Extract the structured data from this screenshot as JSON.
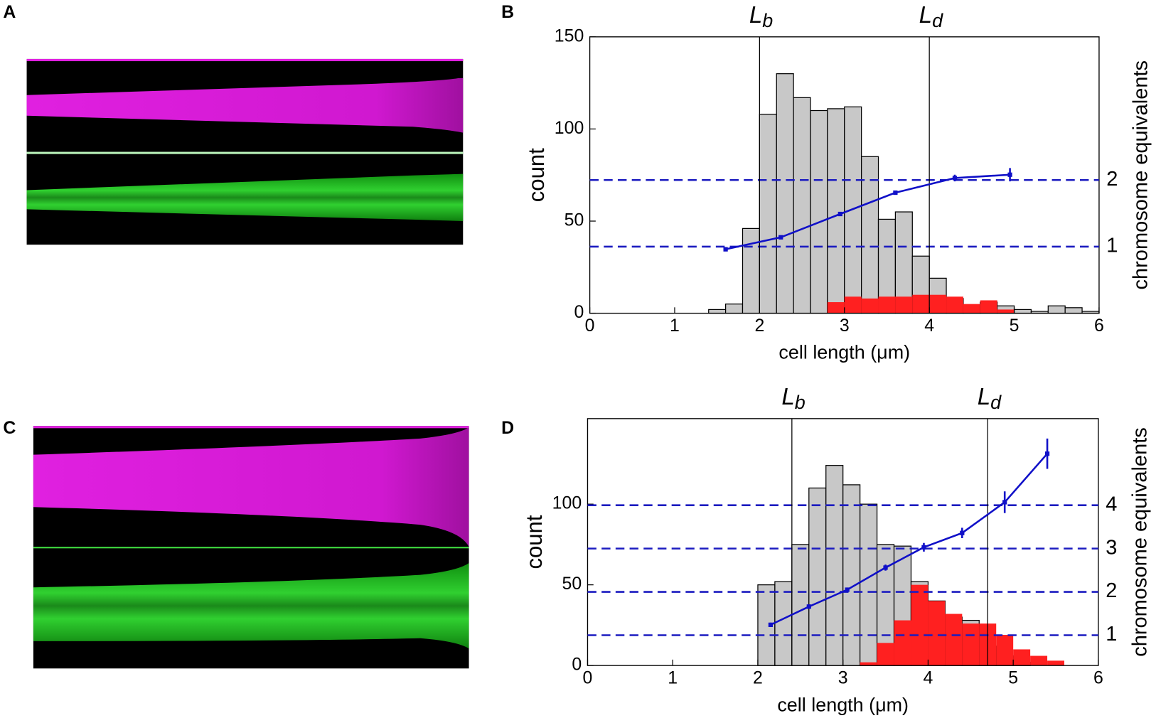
{
  "panel_labels": [
    "A",
    "B",
    "C",
    "D"
  ],
  "chart_data": [
    {
      "type": "histogram",
      "xlabel": "cell length (μm)",
      "ylabel": "count",
      "y2label": "chromosome equivalents",
      "xlim": [
        0,
        6
      ],
      "xticks": [
        0,
        1,
        2,
        3,
        4,
        5,
        6
      ],
      "ylim": [
        0,
        150
      ],
      "yticks": [
        0,
        50,
        100,
        150
      ],
      "y2lim": [
        0,
        4.15
      ],
      "y2ticks": [
        1,
        2
      ],
      "y2grid": "dashed",
      "y2grid_color": "#1c1cc0",
      "histograms": [
        {
          "color": "#c8c8c8",
          "edge_color": "#000000",
          "bins": [
            1.4,
            1.6,
            1.8,
            2.0,
            2.2,
            2.4,
            2.6,
            2.8,
            3.0,
            3.2,
            3.4,
            3.6,
            3.8,
            4.0,
            4.2,
            4.4,
            4.6,
            4.8,
            5.0,
            5.2,
            5.4,
            5.6,
            5.8,
            6.0
          ],
          "values": [
            2,
            5,
            46,
            108,
            130,
            117,
            110,
            111,
            112,
            85,
            51,
            55,
            31,
            19,
            8,
            1,
            6,
            4,
            2,
            1,
            4,
            3,
            1
          ]
        },
        {
          "color": "#ff2020",
          "bins": [
            2.8,
            3.0,
            3.2,
            3.4,
            3.6,
            3.8,
            4.0,
            4.2,
            4.4,
            4.6,
            4.8,
            5.0
          ],
          "values": [
            6,
            9,
            8,
            9,
            9,
            10,
            10,
            9,
            5,
            7,
            2
          ]
        }
      ],
      "series": [
        {
          "color": "#1010c8",
          "axis": "y2",
          "x": [
            1.6,
            2.25,
            2.95,
            3.6,
            4.3,
            4.95
          ],
          "values": [
            0.96,
            1.14,
            1.49,
            1.81,
            2.03,
            2.08
          ],
          "errors": [
            0.02,
            0.02,
            0.03,
            0.03,
            0.05,
            0.1
          ]
        }
      ],
      "vlines": [
        {
          "x": 2,
          "label": "L",
          "sub": "b"
        },
        {
          "x": 4,
          "label": "L",
          "sub": "d"
        }
      ]
    },
    {
      "type": "histogram",
      "xlabel": "cell length (μm)",
      "ylabel": "count",
      "y2label": "chromosome equivalents",
      "xlim": [
        0,
        6
      ],
      "xticks": [
        0,
        1,
        2,
        3,
        4,
        5,
        6
      ],
      "ylim": [
        0,
        153
      ],
      "yticks": [
        0,
        50,
        100
      ],
      "y2lim": [
        0.3,
        6.0
      ],
      "y2ticks": [
        1,
        2,
        3,
        4
      ],
      "y2grid": "dashed",
      "y2grid_color": "#1c1cc0",
      "histograms": [
        {
          "color": "#c8c8c8",
          "edge_color": "#000000",
          "bins": [
            2.0,
            2.2,
            2.4,
            2.6,
            2.8,
            3.0,
            3.2,
            3.4,
            3.6,
            3.8,
            4.0,
            4.2,
            4.4,
            4.6,
            4.8,
            5.0,
            5.2
          ],
          "values": [
            50,
            52,
            75,
            110,
            124,
            112,
            100,
            75,
            74,
            52,
            40,
            30,
            28,
            12,
            6,
            2
          ]
        },
        {
          "color": "#ff2020",
          "bins": [
            3.2,
            3.4,
            3.6,
            3.8,
            4.0,
            4.2,
            4.4,
            4.6,
            4.8,
            5.0,
            5.2,
            5.4,
            5.6
          ],
          "values": [
            2,
            14,
            28,
            50,
            40,
            32,
            26,
            26,
            19,
            10,
            6,
            3
          ]
        }
      ],
      "series": [
        {
          "color": "#1010c8",
          "axis": "y2",
          "x": [
            2.15,
            2.6,
            3.05,
            3.5,
            3.95,
            4.4,
            4.9,
            5.4
          ],
          "values": [
            1.24,
            1.66,
            2.05,
            2.56,
            3.03,
            3.36,
            4.07,
            5.19
          ],
          "errors": [
            0.05,
            0.05,
            0.05,
            0.07,
            0.1,
            0.12,
            0.25,
            0.35
          ]
        }
      ],
      "vlines": [
        {
          "x": 2.4,
          "label": "L",
          "sub": "b"
        },
        {
          "x": 4.7,
          "label": "L",
          "sub": "d"
        }
      ]
    }
  ]
}
